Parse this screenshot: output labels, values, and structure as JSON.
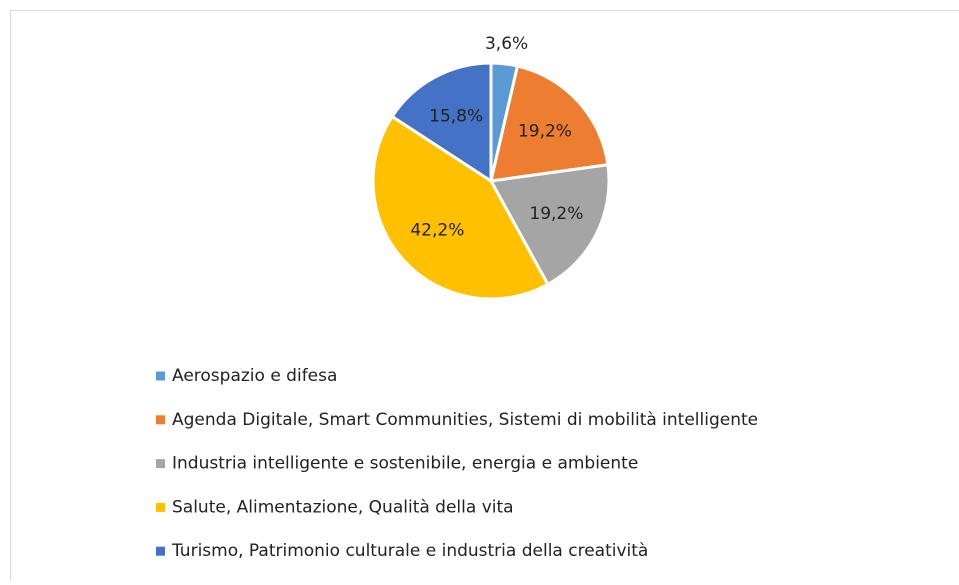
{
  "chart_data": {
    "type": "pie",
    "categories": [
      "Aerospazio e difesa",
      "Agenda Digitale, Smart Communities, Sistemi di mobilità intelligente",
      "Industria intelligente e sostenibile, energia e ambiente",
      "Salute, Alimentazione, Qualità della vita",
      "Turismo, Patrimonio culturale e industria della creatività"
    ],
    "values": [
      3.6,
      19.2,
      19.2,
      42.2,
      15.8
    ],
    "value_labels": [
      "3,6%",
      "19,2%",
      "19,2%",
      "42,2%",
      "15,8%"
    ],
    "colors": [
      "#5b9bd5",
      "#ed7d31",
      "#a5a5a5",
      "#ffc000",
      "#4472c4"
    ],
    "legend": "bottom"
  }
}
